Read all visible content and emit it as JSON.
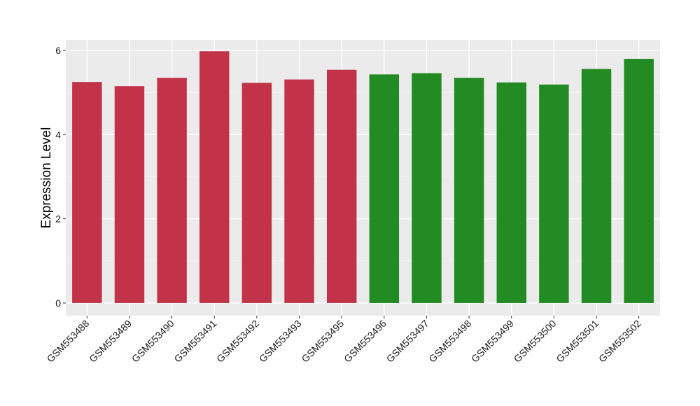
{
  "chart_data": {
    "type": "bar",
    "title": "",
    "xlabel": "",
    "ylabel": "Expression Level",
    "ylim": [
      -0.3,
      6.25
    ],
    "yticks": [
      0,
      2,
      4,
      6
    ],
    "grid": true,
    "legend": "none",
    "categories": [
      "GSM553488",
      "GSM553489",
      "GSM553490",
      "GSM553491",
      "GSM553492",
      "GSM553493",
      "GSM553495",
      "GSM553496",
      "GSM553497",
      "GSM553498",
      "GSM553499",
      "GSM553500",
      "GSM553501",
      "GSM553502"
    ],
    "values": [
      5.25,
      5.15,
      5.35,
      5.98,
      5.23,
      5.31,
      5.54,
      5.43,
      5.46,
      5.35,
      5.24,
      5.19,
      5.56,
      5.8
    ],
    "bar_colors": [
      "#c23349",
      "#c23349",
      "#c23349",
      "#c23349",
      "#c23349",
      "#c23349",
      "#c23349",
      "#238b23",
      "#238b23",
      "#238b23",
      "#238b23",
      "#238b23",
      "#238b23",
      "#238b23"
    ]
  },
  "colors": {
    "panel_background": "#ebebeb",
    "grid_major": "#ffffff",
    "grid_minor": "#f5f5f5",
    "group_a": "#c23349",
    "group_b": "#238b23"
  }
}
